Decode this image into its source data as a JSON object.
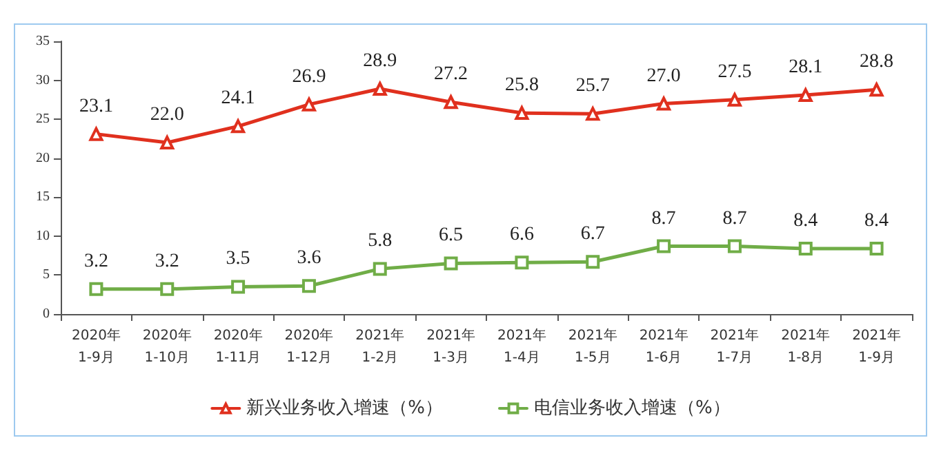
{
  "chart_data": {
    "type": "line",
    "categories": [
      "2020年\n1-9月",
      "2020年\n1-10月",
      "2020年\n1-11月",
      "2020年\n1-12月",
      "2021年\n1-2月",
      "2021年\n1-3月",
      "2021年\n1-4月",
      "2021年\n1-5月",
      "2021年\n1-6月",
      "2021年\n1-7月",
      "2021年\n1-8月",
      "2021年\n1-9月"
    ],
    "series": [
      {
        "name": "新兴业务收入增速（%）",
        "color": "#e0301e",
        "marker": "triangle",
        "values": [
          23.1,
          22.0,
          24.1,
          26.9,
          28.9,
          27.2,
          25.8,
          25.7,
          27.0,
          27.5,
          28.1,
          28.8
        ],
        "value_labels": [
          "23.1",
          "22.0",
          "24.1",
          "26.9",
          "28.9",
          "27.2",
          "25.8",
          "25.7",
          "27.0",
          "27.5",
          "28.1",
          "28.8"
        ]
      },
      {
        "name": "电信业务收入增速（%）",
        "color": "#70ad47",
        "marker": "square",
        "values": [
          3.2,
          3.2,
          3.5,
          3.6,
          5.8,
          6.5,
          6.6,
          6.7,
          8.7,
          8.7,
          8.4,
          8.4
        ],
        "value_labels": [
          "3.2",
          "3.2",
          "3.5",
          "3.6",
          "5.8",
          "6.5",
          "6.6",
          "6.7",
          "8.7",
          "8.7",
          "8.4",
          "8.4"
        ]
      }
    ],
    "ylim": [
      0,
      35
    ],
    "yticks": [
      0,
      5,
      10,
      15,
      20,
      25,
      30,
      35
    ],
    "grid": false,
    "legend": "bottom",
    "line_style": "solid"
  }
}
